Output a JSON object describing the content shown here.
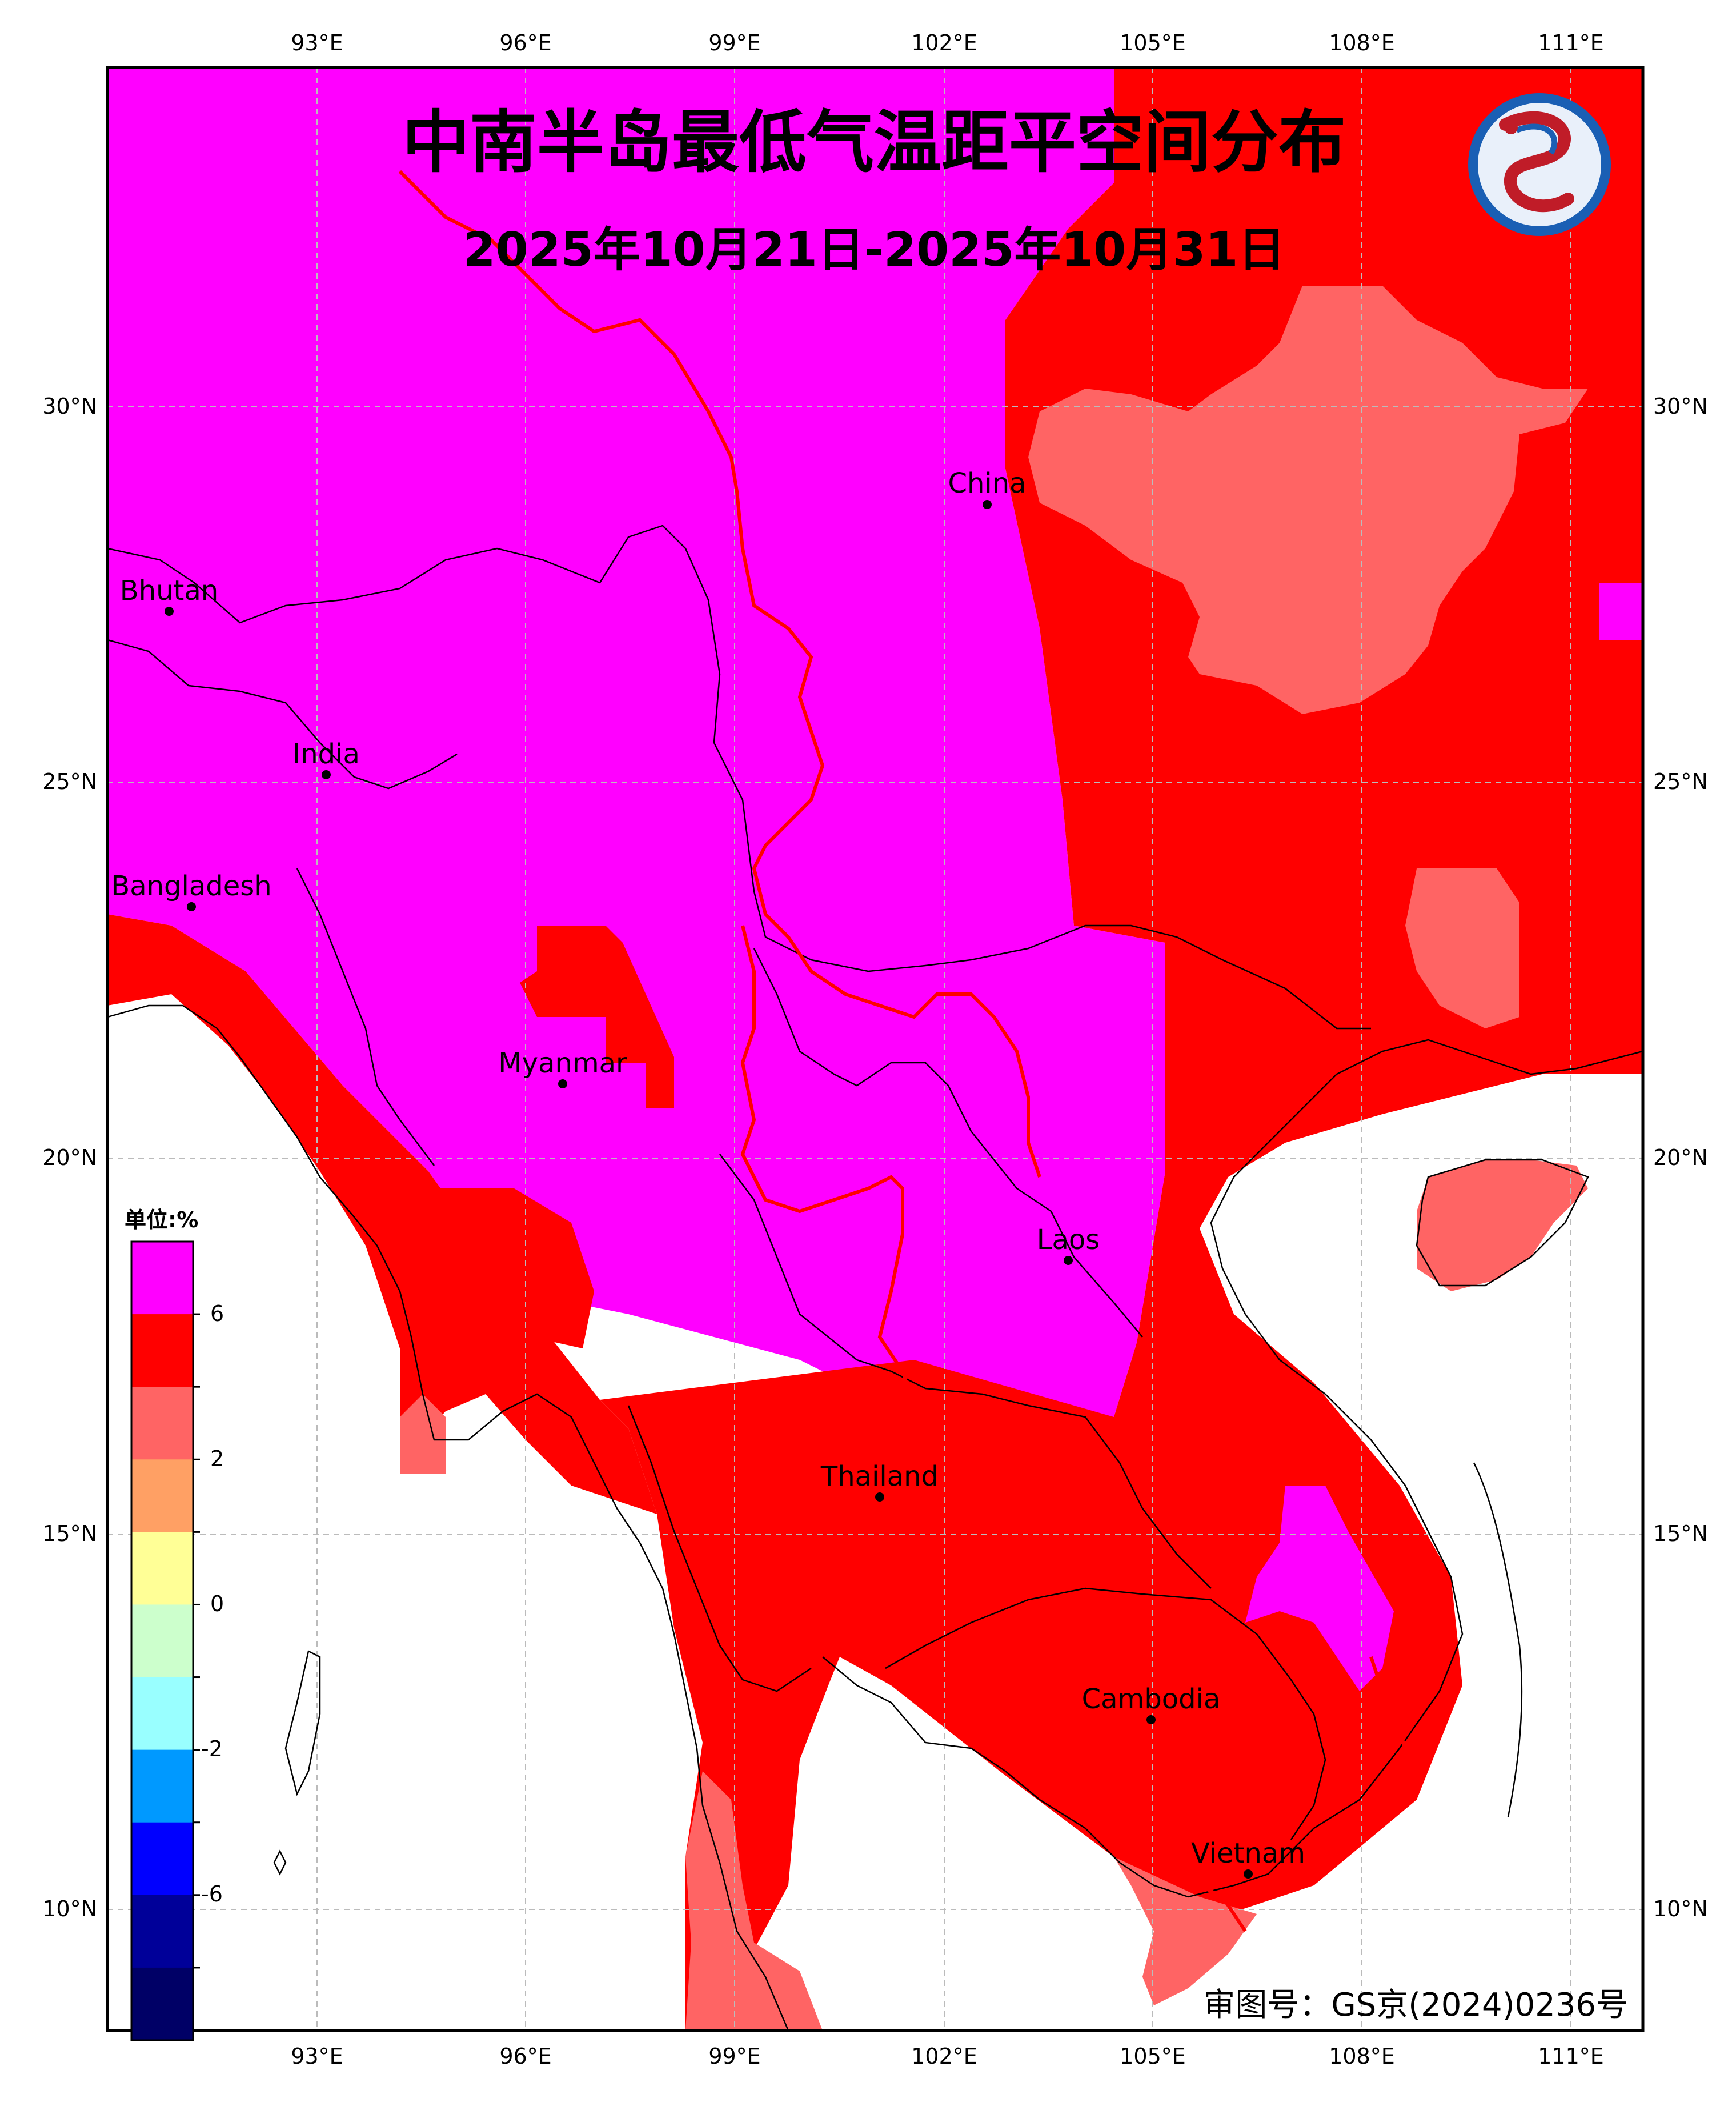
{
  "title": "中南半岛最低气温距平空间分布",
  "subtitle": "2025年10月21日-2025年10月31日",
  "approval_number": "审图号：GS京(2024)0236号",
  "logo": {
    "name": "dragon-logo-icon",
    "colors": [
      "#1a5fb4",
      "#c01c28"
    ]
  },
  "map": {
    "lon_range": [
      90,
      112
    ],
    "lat_range": [
      8,
      35
    ],
    "lon_ticks": [
      {
        "value": 93,
        "label": "93°E"
      },
      {
        "value": 96,
        "label": "96°E"
      },
      {
        "value": 99,
        "label": "99°E"
      },
      {
        "value": 102,
        "label": "102°E"
      },
      {
        "value": 105,
        "label": "105°E"
      },
      {
        "value": 108,
        "label": "108°E"
      },
      {
        "value": 111,
        "label": "111°E"
      }
    ],
    "lat_ticks": [
      {
        "value": 30,
        "label": "30°N"
      },
      {
        "value": 25,
        "label": "25°N"
      },
      {
        "value": 20,
        "label": "20°N"
      },
      {
        "value": 15,
        "label": "15°N"
      },
      {
        "value": 10,
        "label": "10°N"
      }
    ],
    "grid": true,
    "cities": [
      {
        "name": "China",
        "lon": 102.6,
        "lat": 28.7
      },
      {
        "name": "Bhutan",
        "lon": 90.9,
        "lat": 27.3
      },
      {
        "name": "India",
        "lon": 93.1,
        "lat": 25.1
      },
      {
        "name": "Bangladesh",
        "lon": 91.2,
        "lat": 23.4
      },
      {
        "name": "Myanmar",
        "lon": 96.5,
        "lat": 21.0
      },
      {
        "name": "Laos",
        "lon": 103.8,
        "lat": 18.6
      },
      {
        "name": "Thailand",
        "lon": 101.0,
        "lat": 15.5
      },
      {
        "name": "Cambodia",
        "lon": 104.9,
        "lat": 12.6
      },
      {
        "name": "Vietnam",
        "lon": 106.4,
        "lat": 10.6
      }
    ]
  },
  "colorbar": {
    "unit": "单位:%",
    "tick_labels": [
      "6",
      "2",
      "0",
      "-2",
      "-6"
    ],
    "colors": [
      "#ff00ff",
      "#ff0000",
      "#ff6464",
      "#ffa064",
      "#ffff96",
      "#ccffcc",
      "#99ffff",
      "#0099ff",
      "#0000ff",
      "#000099",
      "#000066"
    ]
  },
  "legend_colors": {
    "very_high": "#ff00ff",
    "high": "#ff0000",
    "medium": "#ff6464",
    "low": "#ffa064",
    "yellow": "#ffff96"
  }
}
